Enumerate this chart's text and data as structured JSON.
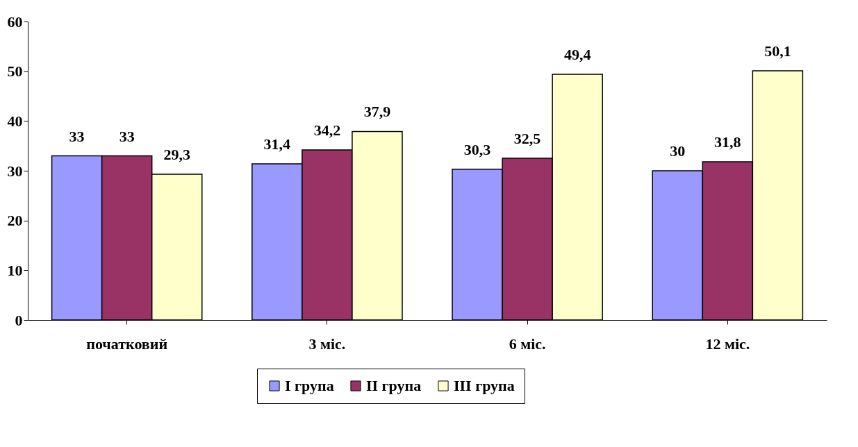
{
  "chart_data": {
    "type": "bar",
    "categories": [
      "початковий",
      "3 міс.",
      "6 міс.",
      "12 міс."
    ],
    "series": [
      {
        "name": "I група",
        "color": "#9999ff",
        "values": [
          33,
          31.4,
          30.3,
          30
        ],
        "value_labels": [
          "33",
          "31,4",
          "30,3",
          "30"
        ]
      },
      {
        "name": "II група",
        "color": "#993366",
        "values": [
          33,
          34.2,
          32.5,
          31.8
        ],
        "value_labels": [
          "33",
          "34,2",
          "32,5",
          "31,8"
        ]
      },
      {
        "name": "III група",
        "color": "#ffffcc",
        "values": [
          29.3,
          37.9,
          49.4,
          50.1
        ],
        "value_labels": [
          "29,3",
          "37,9",
          "49,4",
          "50,1"
        ]
      }
    ],
    "ylim": [
      0,
      60
    ],
    "yticks": [
      0,
      10,
      20,
      30,
      40,
      50,
      60
    ],
    "grid": false,
    "legend": "bottom"
  }
}
